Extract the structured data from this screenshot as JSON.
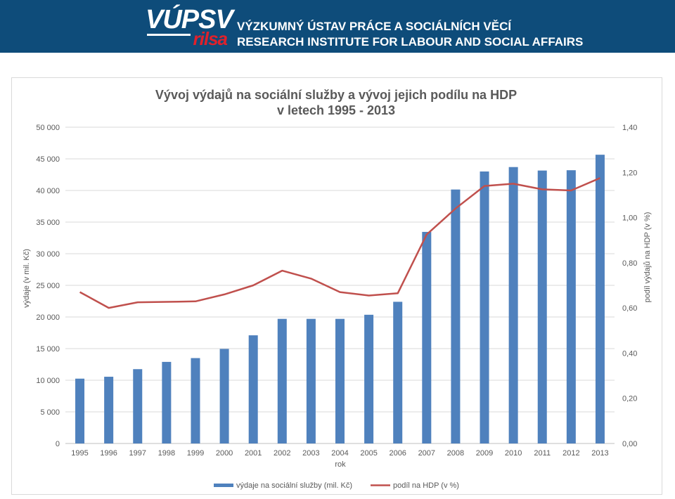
{
  "header": {
    "logo_main": "VÚPSV",
    "logo_sub": "rilsa",
    "institute_cz": "VÝZKUMNÝ ÚSTAV PRÁCE A SOCIÁLNÍCH VĚCÍ",
    "institute_en": "RESEARCH INSTITUTE FOR LABOUR AND SOCIAL AFFAIRS"
  },
  "colors": {
    "header_bg": "#0e4c7a",
    "bar": "#4f81bd",
    "line": "#c0504d",
    "logo_accent": "#e0212b"
  },
  "chart_data": {
    "type": "bar",
    "title": "Vývoj výdajů na sociální služby a vývoj jejich podílu na HDP",
    "subtitle": "v letech 1995 - 2013",
    "xlabel": "rok",
    "ylabel": "výdaje (v mil. Kč)",
    "y2label": "podíl výdajů na HDP (v %)",
    "ylim": [
      0,
      50000
    ],
    "y2lim": [
      0,
      1.4
    ],
    "yticks": [
      "0",
      "5 000",
      "10 000",
      "15 000",
      "20 000",
      "25 000",
      "30 000",
      "35 000",
      "40 000",
      "45 000",
      "50 000"
    ],
    "y2ticks": [
      "0,00",
      "0,20",
      "0,40",
      "0,60",
      "0,80",
      "1,00",
      "1,20",
      "1,40"
    ],
    "grid": true,
    "legend_position": "bottom",
    "categories": [
      "1995",
      "1996",
      "1997",
      "1998",
      "1999",
      "2000",
      "2001",
      "2002",
      "2003",
      "2004",
      "2005",
      "2006",
      "2007",
      "2008",
      "2009",
      "2010",
      "2011",
      "2012",
      "2013"
    ],
    "series": [
      {
        "name": "výdaje na sociální služby (mil. Kč)",
        "type": "bar",
        "axis": "left",
        "values": [
          10250,
          10550,
          11750,
          12900,
          13500,
          14950,
          17100,
          19700,
          19700,
          19700,
          20350,
          22400,
          33450,
          40150,
          43000,
          43700,
          43150,
          43200,
          45650
        ]
      },
      {
        "name": "podíl na HDP (v %)",
        "type": "line",
        "axis": "right",
        "values": [
          0.67,
          0.6,
          0.625,
          0.627,
          0.629,
          0.66,
          0.7,
          0.765,
          0.73,
          0.67,
          0.655,
          0.665,
          0.925,
          1.04,
          1.14,
          1.15,
          1.125,
          1.12,
          1.175
        ]
      }
    ]
  }
}
